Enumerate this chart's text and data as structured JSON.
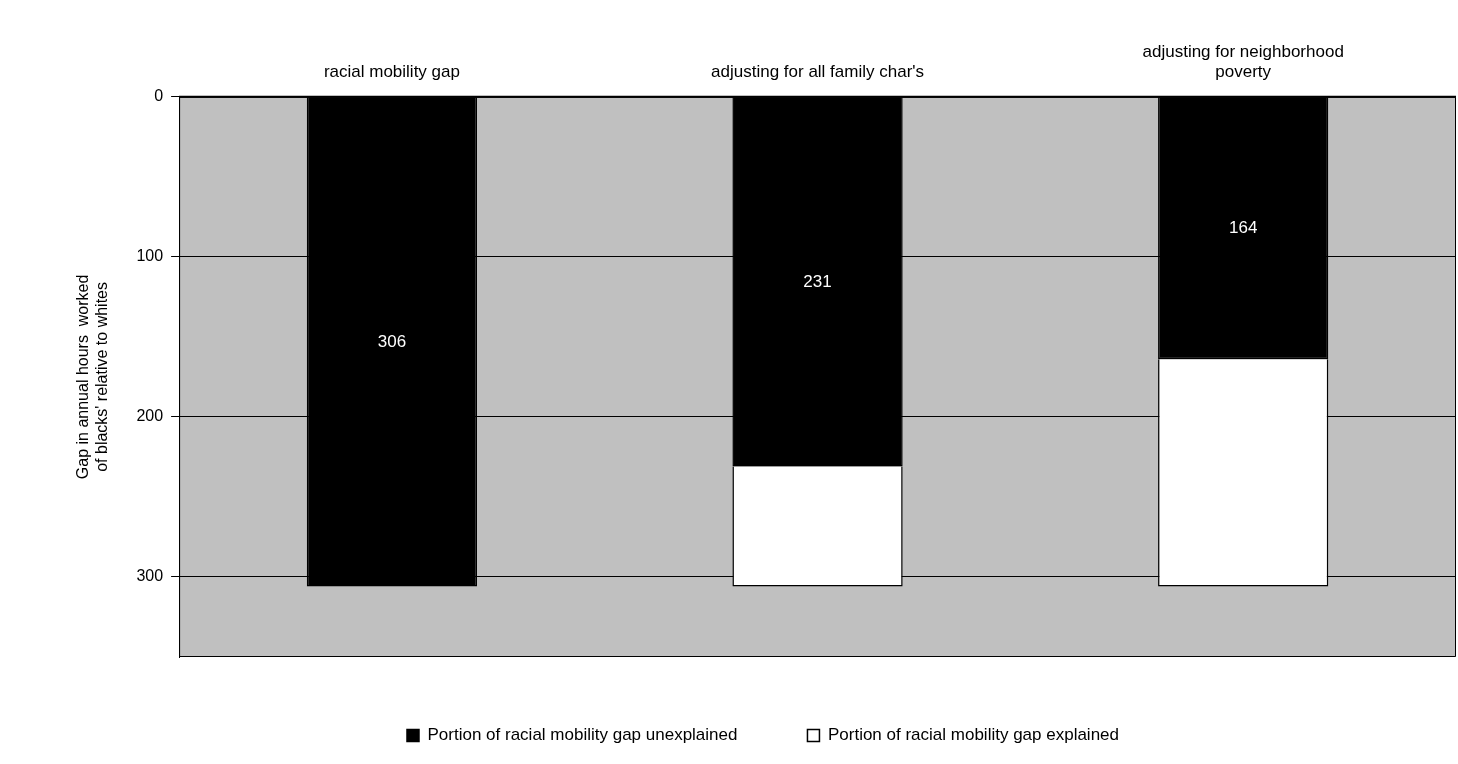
{
  "chart_data": {
    "type": "bar",
    "stacked": true,
    "ylabel": "Gap in annual hours  worked of blacks' relative to whites",
    "categories": [
      "racial mobility gap",
      "adjusting for all family char's",
      "adjusting for neighborhood poverty"
    ],
    "series": [
      {
        "name": "Portion of racial mobility gap unexplained",
        "color": "#000000",
        "values": [
          306,
          231,
          164
        ],
        "value_labels": [
          "306",
          "231",
          "164"
        ]
      },
      {
        "name": "Portion of racial mobility gap explained",
        "color": "#ffffff",
        "values": [
          0,
          75,
          142
        ]
      }
    ],
    "ylim": [
      350,
      0
    ],
    "yticks": [
      0,
      100,
      200,
      300
    ],
    "grid": "y",
    "legend": "bottom"
  }
}
